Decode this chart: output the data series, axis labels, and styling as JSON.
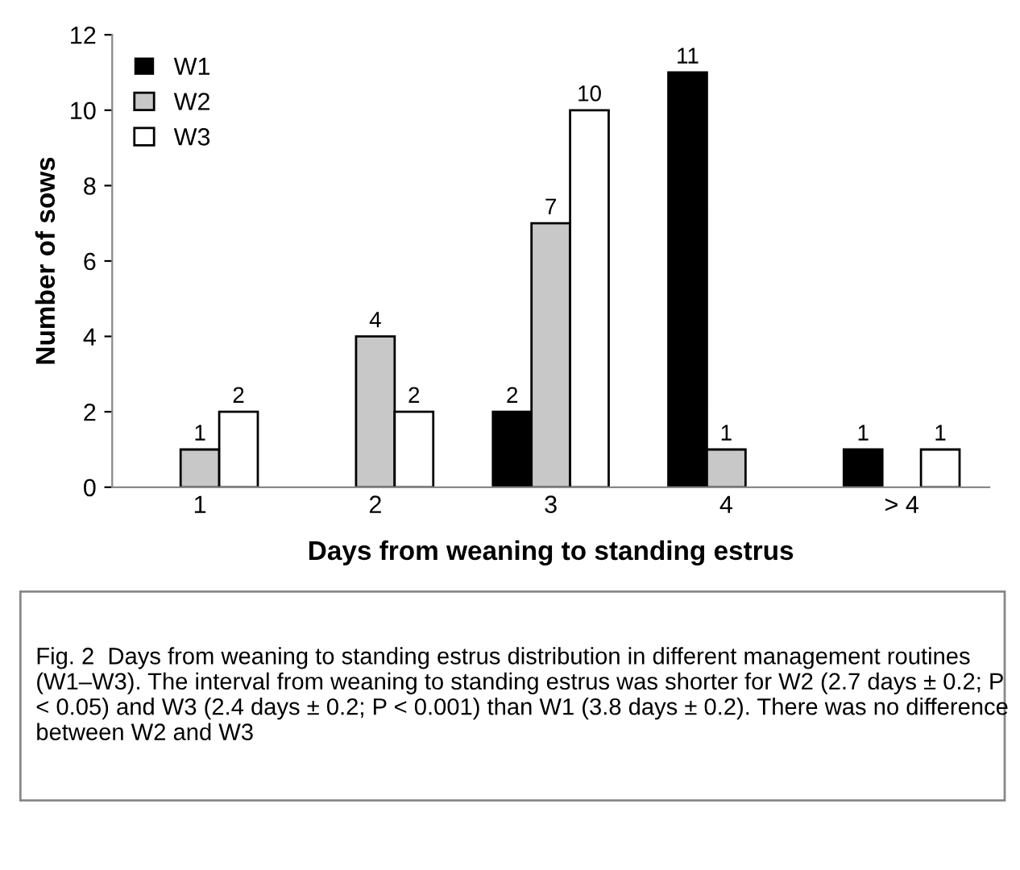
{
  "chart_data": {
    "type": "bar",
    "xlabel": "Days from weaning to standing estrus",
    "ylabel": "Number of sows",
    "categories": [
      "1",
      "2",
      "3",
      "4",
      "> 4"
    ],
    "series": [
      {
        "name": "W1",
        "color": "#000000",
        "values": [
          0,
          0,
          2,
          11,
          1
        ],
        "value_labels": [
          null,
          null,
          "2",
          "11",
          "1"
        ]
      },
      {
        "name": "W2",
        "color": "#c8c8c8",
        "values": [
          1,
          4,
          7,
          1,
          0
        ],
        "value_labels": [
          "1",
          "4",
          "7",
          "1",
          null
        ]
      },
      {
        "name": "W3",
        "color": "#ffffff",
        "values": [
          2,
          2,
          10,
          0,
          1
        ],
        "value_labels": [
          "2",
          "2",
          "10",
          null,
          "1"
        ]
      }
    ],
    "ylim": [
      0,
      12
    ],
    "yticks": [
      0,
      2,
      4,
      6,
      8,
      10,
      12
    ],
    "grid": false,
    "legend": "top left",
    "annotations": [
      "Fig. 2  Days from weaning to standing estrus distribution in different management routines (W1–W3). The interval from weaning to standing estrus was shorter for W2 (2.7 days ± 0.2; P < 0.05) and W3 (2.4 days ± 0.2; P < 0.001) than W1 (3.8 days ± 0.2). There was no difference between W2 and W3"
    ]
  }
}
